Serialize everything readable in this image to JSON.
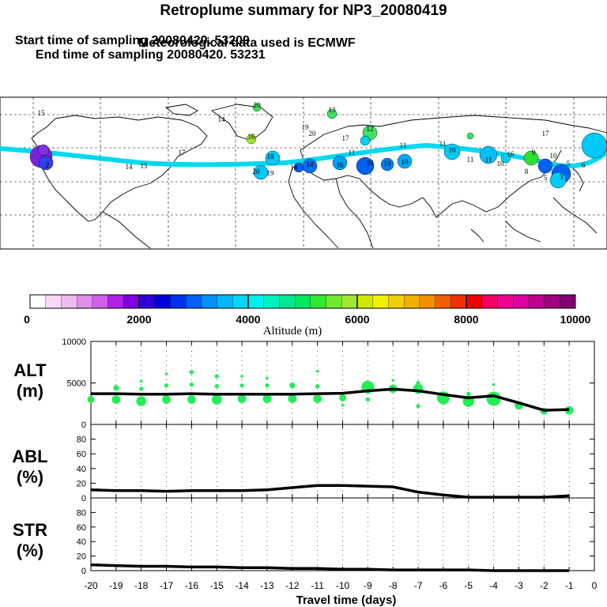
{
  "header": {
    "title": "Retroplume summary for NP3_20080419",
    "start_label": "Start time of sampling 20080420. 53209",
    "end_label": "End time of sampling 20080420. 53231",
    "met_label": "Meteorological data used is ECMWF"
  },
  "colorbar": {
    "title": "Altitude (m)",
    "ticks": [
      "0",
      "2000",
      "4000",
      "6000",
      "8000",
      "10000"
    ],
    "colors": [
      "#ffffff",
      "#f7d8f7",
      "#eebbee",
      "#e090e8",
      "#d060e8",
      "#b020e8",
      "#8000e0",
      "#3000d8",
      "#0000d8",
      "#0030f0",
      "#0060f8",
      "#0090f8",
      "#00b8f8",
      "#00d8f8",
      "#00f0f0",
      "#00f0c0",
      "#00e890",
      "#00e860",
      "#30e830",
      "#70e830",
      "#a0e830",
      "#d0e800",
      "#f0f000",
      "#f0d000",
      "#f0b000",
      "#f09000",
      "#f06000",
      "#f03000",
      "#f00000",
      "#f00060",
      "#f00090",
      "#e000a0",
      "#c00090",
      "#a00080",
      "#800070"
    ]
  },
  "map": {
    "trajectory_labels": [
      "15",
      "20",
      "14",
      "13",
      "16",
      "18",
      "20",
      "19",
      "18",
      "12",
      "17",
      "11",
      "11",
      "19",
      "14",
      "16",
      "11",
      "19",
      "18",
      "10",
      "11",
      "11",
      "16",
      "10",
      "17",
      "10",
      "9",
      "8",
      "5",
      "3",
      "6",
      "5",
      "2",
      "19",
      "20",
      "17",
      "15",
      "14"
    ]
  },
  "chart_data": [
    {
      "type": "line",
      "panel": "ALT",
      "ylabel": "ALT\n(m)",
      "ylim": [
        0,
        10000
      ],
      "yticks": [
        "10000",
        "5000",
        "0"
      ],
      "x": [
        -20,
        -19,
        -18,
        -17,
        -16,
        -15,
        -14,
        -13,
        -12,
        -11,
        -10,
        -9,
        -8,
        -7,
        -6,
        -5,
        -4,
        -3,
        -2,
        -1
      ],
      "mean_altitude": [
        3700,
        3700,
        3650,
        3650,
        3700,
        3650,
        3650,
        3650,
        3650,
        3700,
        3750,
        4050,
        4250,
        4050,
        3600,
        3200,
        3450,
        2600,
        1700,
        1800
      ],
      "scatter_points": [
        {
          "x": -20,
          "y": 3000,
          "size": 5
        },
        {
          "x": -19,
          "y": 3000,
          "size": 6
        },
        {
          "x": -19,
          "y": 4400,
          "size": 4
        },
        {
          "x": -18,
          "y": 2800,
          "size": 7
        },
        {
          "x": -18,
          "y": 4300,
          "size": 3
        },
        {
          "x": -18,
          "y": 5200,
          "size": 2
        },
        {
          "x": -17,
          "y": 3000,
          "size": 6
        },
        {
          "x": -17,
          "y": 4700,
          "size": 3
        },
        {
          "x": -17,
          "y": 6100,
          "size": 2
        },
        {
          "x": -16,
          "y": 3000,
          "size": 6
        },
        {
          "x": -16,
          "y": 4800,
          "size": 3
        },
        {
          "x": -16,
          "y": 6300,
          "size": 3
        },
        {
          "x": -15,
          "y": 3000,
          "size": 7
        },
        {
          "x": -15,
          "y": 4600,
          "size": 3
        },
        {
          "x": -15,
          "y": 5800,
          "size": 3
        },
        {
          "x": -14,
          "y": 3100,
          "size": 6
        },
        {
          "x": -14,
          "y": 4700,
          "size": 3
        },
        {
          "x": -14,
          "y": 5800,
          "size": 2
        },
        {
          "x": -13,
          "y": 3100,
          "size": 6
        },
        {
          "x": -13,
          "y": 4700,
          "size": 3
        },
        {
          "x": -13,
          "y": 5600,
          "size": 2
        },
        {
          "x": -12,
          "y": 3100,
          "size": 6
        },
        {
          "x": -12,
          "y": 4700,
          "size": 4
        },
        {
          "x": -11,
          "y": 3100,
          "size": 6
        },
        {
          "x": -11,
          "y": 4600,
          "size": 3
        },
        {
          "x": -11,
          "y": 6400,
          "size": 2
        },
        {
          "x": -10,
          "y": 3200,
          "size": 5
        },
        {
          "x": -10,
          "y": 2300,
          "size": 2
        },
        {
          "x": -9,
          "y": 4500,
          "size": 9
        },
        {
          "x": -9,
          "y": 3000,
          "size": 3
        },
        {
          "x": -8,
          "y": 4300,
          "size": 6
        },
        {
          "x": -8,
          "y": 5300,
          "size": 2
        },
        {
          "x": -7,
          "y": 4300,
          "size": 7
        },
        {
          "x": -7,
          "y": 5000,
          "size": 3
        },
        {
          "x": -7,
          "y": 2200,
          "size": 3
        },
        {
          "x": -6,
          "y": 3200,
          "size": 9
        },
        {
          "x": -6,
          "y": 2600,
          "size": 3
        },
        {
          "x": -5,
          "y": 2800,
          "size": 8
        },
        {
          "x": -5,
          "y": 3700,
          "size": 3
        },
        {
          "x": -4,
          "y": 3100,
          "size": 10
        },
        {
          "x": -4,
          "y": 4800,
          "size": 2
        },
        {
          "x": -3,
          "y": 2300,
          "size": 6
        },
        {
          "x": -2,
          "y": 1600,
          "size": 5
        },
        {
          "x": -1,
          "y": 1700,
          "size": 6
        }
      ]
    },
    {
      "type": "line",
      "panel": "ABL",
      "ylabel": "ABL\n(%)",
      "ylim": [
        0,
        100
      ],
      "yticks": [
        "80",
        "60",
        "40",
        "20",
        "0"
      ],
      "x": [
        -20,
        -19,
        -18,
        -17,
        -16,
        -15,
        -14,
        -13,
        -12,
        -11,
        -10,
        -9,
        -8,
        -7,
        -6,
        -5,
        -4,
        -3,
        -2,
        -1
      ],
      "values": [
        11,
        10,
        10,
        9,
        10,
        10,
        10,
        11,
        14,
        17,
        17,
        16,
        15,
        8,
        4,
        1,
        1,
        1,
        1,
        3
      ]
    },
    {
      "type": "line",
      "panel": "STR",
      "ylabel": "STR\n(%)",
      "ylim": [
        0,
        100
      ],
      "yticks": [
        "80",
        "60",
        "40",
        "20",
        "0"
      ],
      "x": [
        -20,
        -19,
        -18,
        -17,
        -16,
        -15,
        -14,
        -13,
        -12,
        -11,
        -10,
        -9,
        -8,
        -7,
        -6,
        -5,
        -4,
        -3,
        -2,
        -1
      ],
      "values": [
        8,
        7,
        6,
        6,
        5,
        5,
        4,
        4,
        3,
        3,
        2,
        2,
        1,
        1,
        1,
        1,
        0,
        0,
        0,
        0
      ]
    }
  ],
  "xaxis": {
    "label": "Travel time (days)",
    "ticks": [
      "-20",
      "-19",
      "-18",
      "-17",
      "-16",
      "-15",
      "-14",
      "-13",
      "-12",
      "-11",
      "-10",
      "-9",
      "-8",
      "-7",
      "-6",
      "-5",
      "-4",
      "-3",
      "-2",
      "-1",
      "0"
    ]
  },
  "colors": {
    "line": "#000000",
    "scatter": "#22ee55",
    "trajectory": "#00d8f0"
  }
}
